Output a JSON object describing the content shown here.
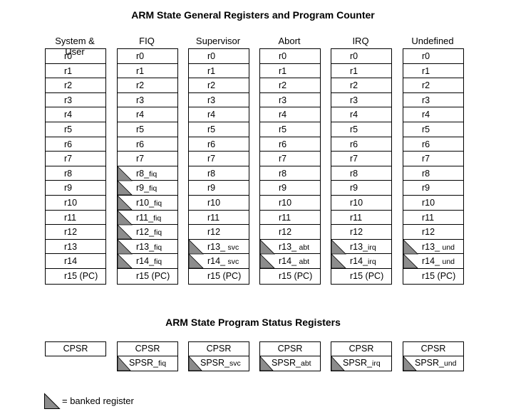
{
  "titles": {
    "general": "ARM State General Registers and Program Counter",
    "status": "ARM State Program Status Registers"
  },
  "colors": {
    "banked_fill": "#8c8c8c",
    "line": "#000000"
  },
  "modes": [
    {
      "name": "System & User",
      "registers": [
        {
          "base": "r0",
          "suffix": "",
          "banked": false
        },
        {
          "base": "r1",
          "suffix": "",
          "banked": false
        },
        {
          "base": "r2",
          "suffix": "",
          "banked": false
        },
        {
          "base": "r3",
          "suffix": "",
          "banked": false
        },
        {
          "base": "r4",
          "suffix": "",
          "banked": false
        },
        {
          "base": "r5",
          "suffix": "",
          "banked": false
        },
        {
          "base": "r6",
          "suffix": "",
          "banked": false
        },
        {
          "base": "r7",
          "suffix": "",
          "banked": false
        },
        {
          "base": "r8",
          "suffix": "",
          "banked": false
        },
        {
          "base": "r9",
          "suffix": "",
          "banked": false
        },
        {
          "base": "r10",
          "suffix": "",
          "banked": false
        },
        {
          "base": "r11",
          "suffix": "",
          "banked": false
        },
        {
          "base": "r12",
          "suffix": "",
          "banked": false
        },
        {
          "base": "r13",
          "suffix": "",
          "banked": false
        },
        {
          "base": "r14",
          "suffix": "",
          "banked": false
        },
        {
          "base": "r15 (PC)",
          "suffix": "",
          "banked": false
        }
      ],
      "psr": {
        "cpsr": "CPSR",
        "spsr": null
      }
    },
    {
      "name": "FIQ",
      "registers": [
        {
          "base": "r0",
          "suffix": "",
          "banked": false
        },
        {
          "base": "r1",
          "suffix": "",
          "banked": false
        },
        {
          "base": "r2",
          "suffix": "",
          "banked": false
        },
        {
          "base": "r3",
          "suffix": "",
          "banked": false
        },
        {
          "base": "r4",
          "suffix": "",
          "banked": false
        },
        {
          "base": "r5",
          "suffix": "",
          "banked": false
        },
        {
          "base": "r6",
          "suffix": "",
          "banked": false
        },
        {
          "base": "r7",
          "suffix": "",
          "banked": false
        },
        {
          "base": "r8_",
          "suffix": "fiq",
          "banked": true
        },
        {
          "base": "r9_",
          "suffix": "fiq",
          "banked": true
        },
        {
          "base": "r10_",
          "suffix": "fiq",
          "banked": true
        },
        {
          "base": "r11_",
          "suffix": "fiq",
          "banked": true
        },
        {
          "base": "r12_",
          "suffix": "fiq",
          "banked": true
        },
        {
          "base": "r13_",
          "suffix": "fiq",
          "banked": true
        },
        {
          "base": "r14_",
          "suffix": "fiq",
          "banked": true
        },
        {
          "base": "r15 (PC)",
          "suffix": "",
          "banked": false
        }
      ],
      "psr": {
        "cpsr": "CPSR",
        "spsr": {
          "base": "SPSR_",
          "suffix": "fiq"
        }
      }
    },
    {
      "name": "Supervisor",
      "registers": [
        {
          "base": "r0",
          "suffix": "",
          "banked": false
        },
        {
          "base": "r1",
          "suffix": "",
          "banked": false
        },
        {
          "base": "r2",
          "suffix": "",
          "banked": false
        },
        {
          "base": "r3",
          "suffix": "",
          "banked": false
        },
        {
          "base": "r4",
          "suffix": "",
          "banked": false
        },
        {
          "base": "r5",
          "suffix": "",
          "banked": false
        },
        {
          "base": "r6",
          "suffix": "",
          "banked": false
        },
        {
          "base": "r7",
          "suffix": "",
          "banked": false
        },
        {
          "base": "r8",
          "suffix": "",
          "banked": false
        },
        {
          "base": "r9",
          "suffix": "",
          "banked": false
        },
        {
          "base": "r10",
          "suffix": "",
          "banked": false
        },
        {
          "base": "r11",
          "suffix": "",
          "banked": false
        },
        {
          "base": "r12",
          "suffix": "",
          "banked": false
        },
        {
          "base": "r13_ ",
          "suffix": "svc",
          "banked": true
        },
        {
          "base": "r14_ ",
          "suffix": "svc",
          "banked": true
        },
        {
          "base": "r15 (PC)",
          "suffix": "",
          "banked": false
        }
      ],
      "psr": {
        "cpsr": "CPSR",
        "spsr": {
          "base": "SPSR_",
          "suffix": "svc"
        }
      }
    },
    {
      "name": "Abort",
      "registers": [
        {
          "base": "r0",
          "suffix": "",
          "banked": false
        },
        {
          "base": "r1",
          "suffix": "",
          "banked": false
        },
        {
          "base": "r2",
          "suffix": "",
          "banked": false
        },
        {
          "base": "r3",
          "suffix": "",
          "banked": false
        },
        {
          "base": "r4",
          "suffix": "",
          "banked": false
        },
        {
          "base": "r5",
          "suffix": "",
          "banked": false
        },
        {
          "base": "r6",
          "suffix": "",
          "banked": false
        },
        {
          "base": "r7",
          "suffix": "",
          "banked": false
        },
        {
          "base": "r8",
          "suffix": "",
          "banked": false
        },
        {
          "base": "r9",
          "suffix": "",
          "banked": false
        },
        {
          "base": "r10",
          "suffix": "",
          "banked": false
        },
        {
          "base": "r11",
          "suffix": "",
          "banked": false
        },
        {
          "base": "r12",
          "suffix": "",
          "banked": false
        },
        {
          "base": "r13_ ",
          "suffix": "abt",
          "banked": true
        },
        {
          "base": "r14_ ",
          "suffix": "abt",
          "banked": true
        },
        {
          "base": "r15 (PC)",
          "suffix": "",
          "banked": false
        }
      ],
      "psr": {
        "cpsr": "CPSR",
        "spsr": {
          "base": "SPSR_",
          "suffix": "abt"
        }
      }
    },
    {
      "name": "IRQ",
      "registers": [
        {
          "base": "r0",
          "suffix": "",
          "banked": false
        },
        {
          "base": "r1",
          "suffix": "",
          "banked": false
        },
        {
          "base": "r2",
          "suffix": "",
          "banked": false
        },
        {
          "base": "r3",
          "suffix": "",
          "banked": false
        },
        {
          "base": "r4",
          "suffix": "",
          "banked": false
        },
        {
          "base": "r5",
          "suffix": "",
          "banked": false
        },
        {
          "base": "r6",
          "suffix": "",
          "banked": false
        },
        {
          "base": "r7",
          "suffix": "",
          "banked": false
        },
        {
          "base": "r8",
          "suffix": "",
          "banked": false
        },
        {
          "base": "r9",
          "suffix": "",
          "banked": false
        },
        {
          "base": "r10",
          "suffix": "",
          "banked": false
        },
        {
          "base": "r11",
          "suffix": "",
          "banked": false
        },
        {
          "base": "r12",
          "suffix": "",
          "banked": false
        },
        {
          "base": "r13_",
          "suffix": "irq",
          "banked": true
        },
        {
          "base": "r14_",
          "suffix": "irq",
          "banked": true
        },
        {
          "base": "r15 (PC)",
          "suffix": "",
          "banked": false
        }
      ],
      "psr": {
        "cpsr": "CPSR",
        "spsr": {
          "base": "SPSR_",
          "suffix": "irq"
        }
      }
    },
    {
      "name": "Undefined",
      "registers": [
        {
          "base": "r0",
          "suffix": "",
          "banked": false
        },
        {
          "base": "r1",
          "suffix": "",
          "banked": false
        },
        {
          "base": "r2",
          "suffix": "",
          "banked": false
        },
        {
          "base": "r3",
          "suffix": "",
          "banked": false
        },
        {
          "base": "r4",
          "suffix": "",
          "banked": false
        },
        {
          "base": "r5",
          "suffix": "",
          "banked": false
        },
        {
          "base": "r6",
          "suffix": "",
          "banked": false
        },
        {
          "base": "r7",
          "suffix": "",
          "banked": false
        },
        {
          "base": "r8",
          "suffix": "",
          "banked": false
        },
        {
          "base": "r9",
          "suffix": "",
          "banked": false
        },
        {
          "base": "r10",
          "suffix": "",
          "banked": false
        },
        {
          "base": "r11",
          "suffix": "",
          "banked": false
        },
        {
          "base": "r12",
          "suffix": "",
          "banked": false
        },
        {
          "base": "r13_ ",
          "suffix": "und",
          "banked": true
        },
        {
          "base": "r14_ ",
          "suffix": "und",
          "banked": true
        },
        {
          "base": "r15 (PC)",
          "suffix": "",
          "banked": false
        }
      ],
      "psr": {
        "cpsr": "CPSR",
        "spsr": {
          "base": "SPSR_",
          "suffix": "und"
        }
      }
    }
  ],
  "legend": {
    "icon": "banked-triangle-icon",
    "text": "= banked register"
  }
}
